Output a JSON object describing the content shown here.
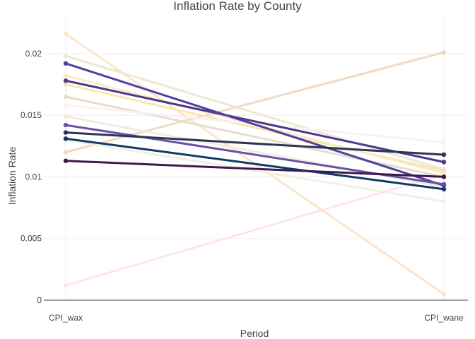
{
  "chart_data": {
    "type": "line",
    "title": "Inflation Rate by County",
    "xlabel": "Period",
    "ylabel": "Inflation Rate",
    "categories": [
      "CPI_wax",
      "CPI_wane"
    ],
    "ylim": [
      0,
      0.0232
    ],
    "yticks": [
      0,
      0.005,
      0.01,
      0.015,
      0.02
    ],
    "ytick_labels": [
      "0",
      "0.005",
      "0.01",
      "0.015",
      "0.02"
    ],
    "grid": true,
    "legend": "none",
    "series": [
      {
        "values": [
          0.0216,
          0.0005
        ],
        "color": "#fce2c4",
        "width": 3,
        "opacity": 0.9
      },
      {
        "values": [
          0.0012,
          0.0102
        ],
        "color": "#fde3e8",
        "width": 3,
        "opacity": 0.9
      },
      {
        "values": [
          0.012,
          0.0201
        ],
        "color": "#efd7bb",
        "width": 3,
        "opacity": 0.9
      },
      {
        "values": [
          0.0198,
          0.0106
        ],
        "color": "#ece6cf",
        "width": 3,
        "opacity": 0.9
      },
      {
        "values": [
          0.0175,
          0.0105
        ],
        "color": "#f9e4a6",
        "width": 3,
        "opacity": 0.9
      },
      {
        "values": [
          0.0165,
          0.01
        ],
        "color": "#e2dac8",
        "width": 3,
        "opacity": 0.9
      },
      {
        "values": [
          0.0158,
          0.0128
        ],
        "color": "#fbeef1",
        "width": 3,
        "opacity": 0.9
      },
      {
        "values": [
          0.0149,
          0.0092
        ],
        "color": "#f2ead8",
        "width": 3,
        "opacity": 0.9
      },
      {
        "values": [
          0.0182,
          0.0103
        ],
        "color": "#fbe8c6",
        "width": 3,
        "opacity": 0.9
      },
      {
        "values": [
          0.013,
          0.008
        ],
        "color": "#eef0e0",
        "width": 3,
        "opacity": 0.9
      },
      {
        "values": [
          0.0178,
          0.0112
        ],
        "color": "#4b3a8a",
        "width": 3,
        "opacity": 1
      },
      {
        "values": [
          0.0192,
          0.0093
        ],
        "color": "#503fa1",
        "width": 3,
        "opacity": 1
      },
      {
        "values": [
          0.0142,
          0.0094
        ],
        "color": "#6651a6",
        "width": 3,
        "opacity": 1
      },
      {
        "values": [
          0.0136,
          0.0118
        ],
        "color": "#2c3556",
        "width": 3,
        "opacity": 1
      },
      {
        "values": [
          0.0131,
          0.009
        ],
        "color": "#0e3a66",
        "width": 3,
        "opacity": 1
      },
      {
        "values": [
          0.0113,
          0.01
        ],
        "color": "#3d1a4d",
        "width": 3,
        "opacity": 1
      }
    ]
  }
}
